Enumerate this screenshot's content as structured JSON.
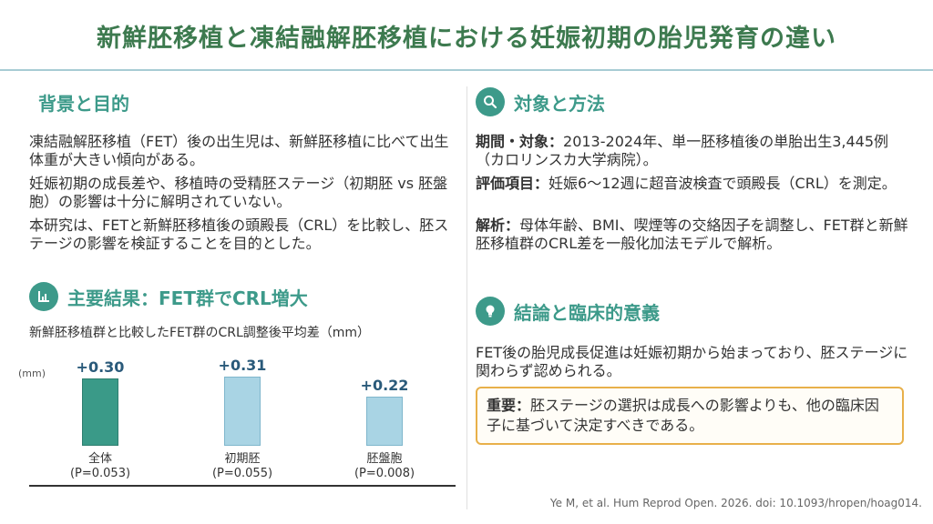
{
  "title": "新鮮胚移植と凍結融解胚移植における妊娠初期の胎児発育の違い",
  "background": {
    "heading": "背景と目的",
    "p1": "凍結融解胚移植（FET）後の出生児は、新鮮胚移植に比べて出生体重が大きい傾向がある。",
    "p2": "妊娠初期の成長差や、移植時の受精胚ステージ（初期胚 vs 胚盤胞）の影響は十分に解明されていない。",
    "p3": "本研究は、FETと新鮮胚移植後の頭殿長（CRL）を比較し、胚ステージの影響を検証することを目的とした。"
  },
  "results": {
    "heading": "主要結果：FET群でCRL増大",
    "icon": "bar-chart-icon",
    "caption": "新鮮胚移植群と比較したFET群のCRL調整後平均差（mm）",
    "unit": "(mm)"
  },
  "chart_data": {
    "type": "bar",
    "title": "新鮮胚移植群と比較したFET群のCRL調整後平均差（mm）",
    "ylabel": "(mm)",
    "categories": [
      "全体",
      "初期胚",
      "胚盤胞"
    ],
    "p_values": [
      "(P=0.053)",
      "(P=0.055)",
      "(P=0.008)"
    ],
    "values": [
      0.3,
      0.31,
      0.22
    ],
    "value_labels": [
      "+0.30",
      "+0.31",
      "+0.22"
    ],
    "colors": [
      "#3a9a88",
      "#a9d4e4",
      "#a9d4e4"
    ],
    "ylim": [
      0,
      0.31
    ]
  },
  "methods": {
    "heading": "対象と方法",
    "icon": "search-icon",
    "period_label": "期間・対象：",
    "period_text": "2013-2024年、単一胚移植後の単胎出生3,445例（カロリンスカ大学病院）。",
    "eval_label": "評価項目：",
    "eval_text": "妊娠6〜12週に超音波検査で頭殿長（CRL）を測定。",
    "analysis_label": "解析：",
    "analysis_text": "母体年齢、BMI、喫煙等の交絡因子を調整し、FET群と新鮮胚移植群のCRL差を一般化加法モデルで解析。"
  },
  "conclusion": {
    "heading": "結論と臨床的意義",
    "icon": "lightbulb-icon",
    "text": "FET後の胎児成長促進は妊娠初期から始まっており、胚ステージに関わらず認められる。",
    "important_label": "重要：",
    "important_text": "胚ステージの選択は成長への影響よりも、他の臨床因子に基づいて決定すべきである。"
  },
  "citation": "Ye M, et al. Hum Reprod Open. 2026. doi: 10.1093/hropen/hoag014.",
  "colors": {
    "title_green": "#3d7a4f",
    "heading_teal": "#3d9a8a",
    "bar_dark": "#3a9a88",
    "bar_light": "#a9d4e4",
    "value_blue": "#2a5a7a",
    "note_border": "#e8b04a"
  }
}
